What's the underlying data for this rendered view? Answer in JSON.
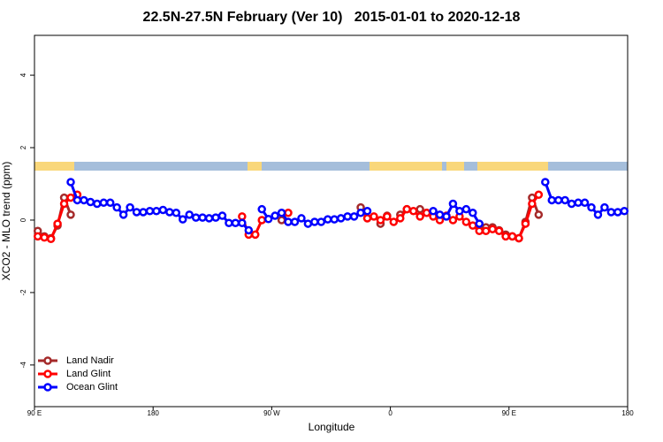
{
  "chart_data": {
    "type": "line",
    "title": "22.5N-27.5N February (Ver 10)   2015-01-01 to 2020-12-18",
    "x_label": "Longitude",
    "y_label": "XCO2 - MLO trend (ppm)",
    "xlim": [
      90,
      540
    ],
    "ylim": [
      -5.15,
      5.1
    ],
    "xticks": [
      {
        "value": 90,
        "label": "90 E"
      },
      180,
      {
        "value": 270,
        "label": "90 W"
      },
      {
        "value": 360,
        "label": "0"
      },
      {
        "value": 450,
        "label": "90 E"
      },
      {
        "value": 540,
        "label": "180"
      }
    ],
    "yticks": [
      -4,
      -2,
      0,
      2,
      4
    ],
    "legend": "bottom-left",
    "x": [
      92.5,
      97.5,
      102.5,
      107.5,
      112.5,
      117.5,
      122.5,
      127.5,
      132.5,
      137.5,
      142.5,
      147.5,
      152.5,
      157.5,
      162.5,
      167.5,
      172.5,
      177.5,
      182.5,
      187.5,
      192.5,
      197.5,
      202.5,
      207.5,
      212.5,
      217.5,
      222.5,
      227.5,
      232.5,
      237.5,
      242.5,
      247.5,
      252.5,
      257.5,
      262.5,
      267.5,
      272.5,
      277.5,
      282.5,
      287.5,
      292.5,
      297.5,
      302.5,
      307.5,
      312.5,
      317.5,
      322.5,
      327.5,
      332.5,
      337.5,
      342.5,
      347.5,
      352.5,
      357.5,
      362.5,
      367.5,
      372.5,
      377.5,
      382.5,
      387.5,
      392.5,
      397.5,
      402.5,
      407.5,
      412.5,
      417.5,
      422.5,
      427.5,
      432.5,
      437.5,
      442.5,
      447.5,
      452.5,
      457.5,
      462.5,
      467.5,
      472.5,
      477.5,
      482.5,
      487.5,
      492.5,
      497.5,
      502.5,
      507.5,
      512.5,
      517.5,
      522.5,
      527.5,
      532.5,
      537.5
    ],
    "series": [
      {
        "name": "Land Nadir",
        "color": "#a52a2a",
        "values": [
          -0.3,
          -0.45,
          -0.5,
          -0.15,
          0.62,
          0.15,
          null,
          null,
          null,
          null,
          null,
          null,
          null,
          null,
          null,
          null,
          null,
          null,
          null,
          null,
          null,
          null,
          null,
          null,
          null,
          null,
          null,
          null,
          null,
          null,
          null,
          null,
          null,
          null,
          null,
          null,
          null,
          0.0,
          null,
          null,
          null,
          null,
          null,
          null,
          null,
          null,
          null,
          null,
          null,
          0.35,
          0.05,
          null,
          -0.1,
          0.12,
          null,
          0.15,
          0.3,
          null,
          0.3,
          0.2,
          0.15,
          null,
          null,
          null,
          null,
          null,
          null,
          -0.2,
          -0.2,
          -0.2,
          -0.28,
          -0.4,
          -0.45,
          -0.5,
          -0.05,
          0.62,
          0.15,
          null,
          null,
          null,
          null,
          null,
          null,
          null,
          null,
          null,
          null,
          null,
          null,
          null
        ]
      },
      {
        "name": "Land Glint",
        "color": "#ff0000",
        "values": [
          -0.45,
          -0.48,
          -0.52,
          -0.1,
          0.45,
          0.62,
          0.7,
          null,
          null,
          null,
          null,
          null,
          null,
          null,
          null,
          null,
          null,
          null,
          null,
          null,
          null,
          null,
          null,
          null,
          null,
          null,
          null,
          null,
          null,
          null,
          null,
          0.1,
          -0.4,
          -0.4,
          0.0,
          null,
          null,
          null,
          0.2,
          null,
          null,
          null,
          null,
          null,
          null,
          null,
          null,
          null,
          null,
          null,
          0.05,
          0.1,
          0.0,
          0.1,
          -0.05,
          0.05,
          0.3,
          0.25,
          0.1,
          0.2,
          0.1,
          0.0,
          0.12,
          0.0,
          0.1,
          -0.05,
          -0.15,
          -0.3,
          -0.3,
          -0.25,
          -0.3,
          -0.45,
          -0.45,
          -0.5,
          -0.1,
          0.45,
          0.7,
          null,
          null,
          null,
          null,
          null,
          null,
          null,
          null,
          null,
          null,
          null,
          null,
          null
        ]
      },
      {
        "name": "Ocean Glint",
        "color": "#0000ff",
        "values": [
          null,
          null,
          null,
          null,
          null,
          1.05,
          0.55,
          0.55,
          0.5,
          0.45,
          0.48,
          0.48,
          0.35,
          0.15,
          0.35,
          0.22,
          0.22,
          0.25,
          0.25,
          0.28,
          0.22,
          0.2,
          0.02,
          0.15,
          0.07,
          0.07,
          0.05,
          0.07,
          0.12,
          -0.08,
          -0.08,
          -0.08,
          -0.28,
          null,
          0.3,
          0.03,
          0.12,
          0.2,
          -0.05,
          -0.05,
          0.05,
          -0.1,
          -0.05,
          -0.05,
          0.02,
          0.02,
          0.05,
          0.1,
          0.1,
          0.2,
          0.25,
          null,
          null,
          null,
          null,
          null,
          null,
          null,
          null,
          null,
          0.25,
          0.15,
          0.1,
          0.45,
          0.25,
          0.3,
          0.2,
          -0.1,
          null,
          null,
          null,
          null,
          null,
          null,
          null,
          null,
          null,
          1.05,
          0.55,
          0.55,
          0.55,
          0.45,
          0.48,
          0.48,
          0.35,
          0.15,
          0.35,
          0.22,
          0.22,
          0.25
        ]
      }
    ]
  }
}
